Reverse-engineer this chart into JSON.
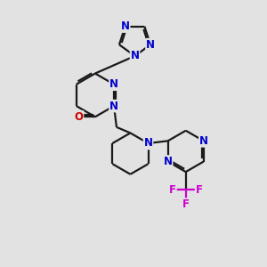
{
  "background_color": "#e2e2e2",
  "bond_color": "#1a1a1a",
  "nitrogen_color": "#0000cc",
  "oxygen_color": "#cc0000",
  "fluorine_color": "#cc00cc",
  "carbon_color": "#1a1a1a",
  "line_width": 1.6,
  "font_size_atom": 8.5,
  "fig_width": 3.0,
  "fig_height": 3.0,
  "dpi": 100,
  "xlim": [
    0,
    10
  ],
  "ylim": [
    0,
    10
  ]
}
